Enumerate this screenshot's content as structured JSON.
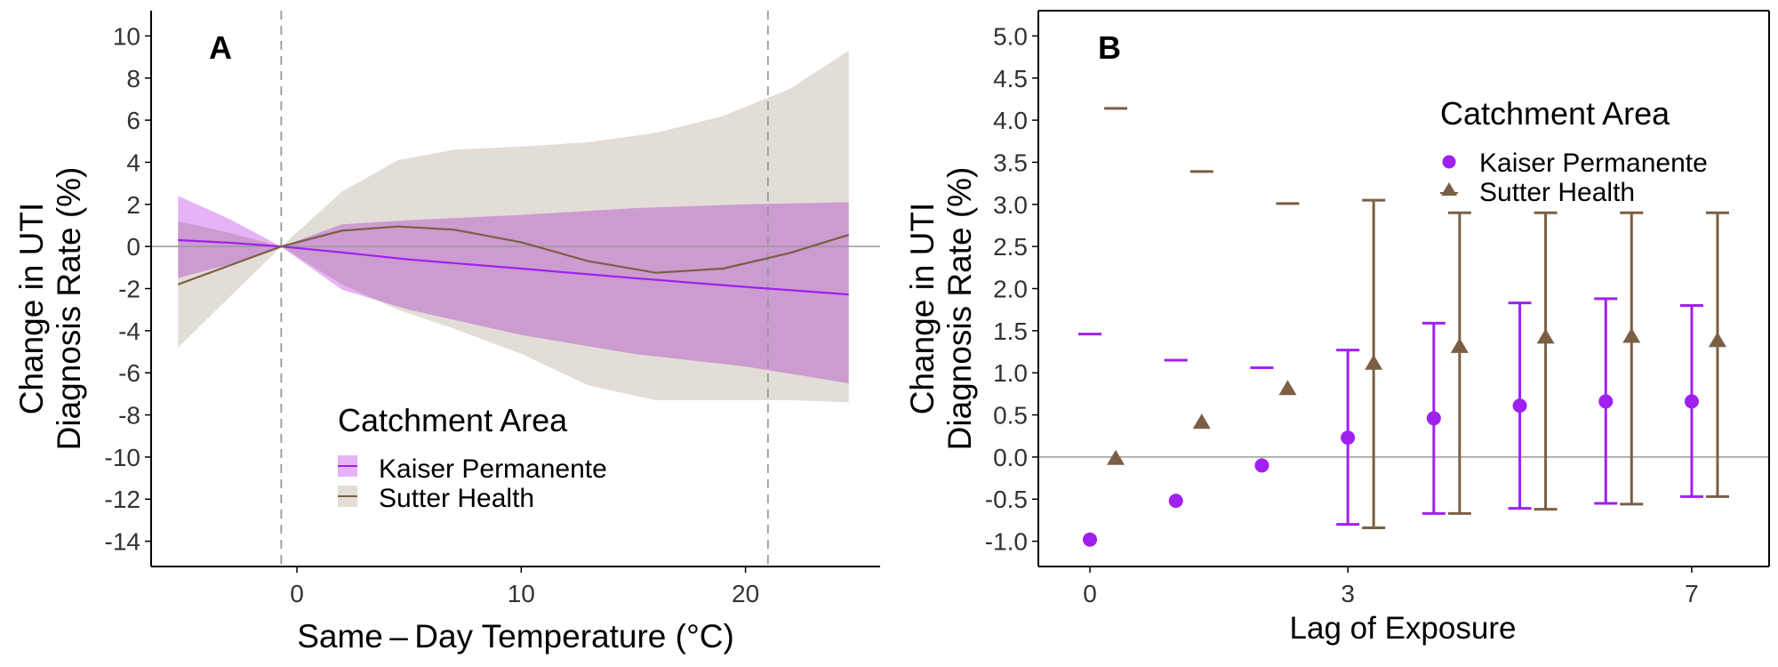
{
  "chart_data": [
    {
      "type": "line",
      "panel_label": "A",
      "xlabel": "Same – Day Temperature (°C)",
      "ylabel": [
        "Change in UTI",
        "Diagnosis Rate (%)"
      ],
      "xlim": [
        -6.5,
        26
      ],
      "ylim": [
        -15.2,
        11.2
      ],
      "x_ticks": [
        0,
        10,
        20
      ],
      "y_ticks": [
        10,
        8,
        6,
        4,
        2,
        0,
        -2,
        -4,
        -6,
        -8,
        -10,
        -12,
        -14
      ],
      "reference_lines": {
        "horizontal_y": 0,
        "vertical_x": [
          -0.7,
          21
        ]
      },
      "legend": {
        "title": "Catchment Area",
        "position": "bottom-center"
      },
      "series": [
        {
          "name": "Kaiser Permanente",
          "color": "#a020f0",
          "band_color": "#e6b3f7",
          "x": [
            -5.3,
            -3,
            -0.7,
            2,
            5,
            10,
            15,
            20,
            24.6
          ],
          "y": [
            0.3,
            0.18,
            0,
            -0.28,
            -0.62,
            -1.05,
            -1.5,
            -1.92,
            -2.28
          ],
          "upper": [
            2.4,
            1.3,
            0,
            1.05,
            1.25,
            1.5,
            1.82,
            2.0,
            2.1
          ],
          "lower": [
            -1.5,
            -0.85,
            0,
            -2.05,
            -3.0,
            -4.2,
            -5.1,
            -5.7,
            -6.5
          ]
        },
        {
          "name": "Sutter Health",
          "color": "#7b5f45",
          "band_color": "#e3ddd7",
          "x": [
            -5.3,
            -3,
            -0.7,
            2,
            4.5,
            7,
            10,
            13,
            16,
            19,
            22,
            24.6
          ],
          "y": [
            -1.8,
            -0.9,
            0,
            0.75,
            0.95,
            0.8,
            0.2,
            -0.7,
            -1.25,
            -1.05,
            -0.3,
            0.55
          ],
          "upper": [
            1.2,
            0.65,
            0,
            2.6,
            4.1,
            4.6,
            4.75,
            4.95,
            5.4,
            6.2,
            7.5,
            9.3
          ],
          "lower": [
            -4.8,
            -2.4,
            0,
            -1.8,
            -3.0,
            -3.9,
            -5.1,
            -6.6,
            -7.3,
            -7.3,
            -7.3,
            -7.4
          ]
        }
      ]
    },
    {
      "type": "scatter",
      "panel_label": "B",
      "xlabel": "Lag of Exposure",
      "ylabel": [
        "Change in UTI",
        "Diagnosis Rate (%)"
      ],
      "xlim": [
        -0.6,
        7.9
      ],
      "ylim": [
        -1.3,
        5.3
      ],
      "x_ticks": [
        0,
        3,
        7
      ],
      "y_ticks": [
        5.0,
        4.5,
        4.0,
        3.5,
        3.0,
        2.5,
        2.0,
        1.5,
        1.0,
        0.5,
        0.0,
        -0.5,
        -1.0
      ],
      "reference_lines": {
        "horizontal_y": 0
      },
      "legend": {
        "title": "Catchment Area",
        "position": "top-right"
      },
      "series": [
        {
          "name": "Kaiser Permanente",
          "marker": "circle",
          "color": "#a020f0",
          "x": [
            0,
            1,
            2,
            3,
            4,
            5,
            6,
            7
          ],
          "y": [
            -0.98,
            -0.52,
            -0.1,
            0.23,
            0.46,
            0.61,
            0.66,
            0.66
          ],
          "upper": [
            1.46,
            1.15,
            1.06,
            1.27,
            1.59,
            1.83,
            1.88,
            1.8
          ],
          "lower": [
            null,
            null,
            null,
            -0.8,
            -0.67,
            -0.61,
            -0.55,
            -0.47
          ]
        },
        {
          "name": "Sutter Health",
          "marker": "triangle",
          "color": "#7b5f45",
          "x": [
            0,
            1,
            2,
            3,
            4,
            5,
            6,
            7
          ],
          "y": [
            -0.02,
            0.41,
            0.81,
            1.11,
            1.31,
            1.42,
            1.43,
            1.38
          ],
          "upper": [
            4.14,
            3.39,
            3.01,
            3.05,
            2.9,
            2.9,
            2.9,
            2.9
          ],
          "lower": [
            null,
            null,
            null,
            -0.84,
            -0.67,
            -0.62,
            -0.56,
            -0.47
          ]
        }
      ]
    }
  ]
}
